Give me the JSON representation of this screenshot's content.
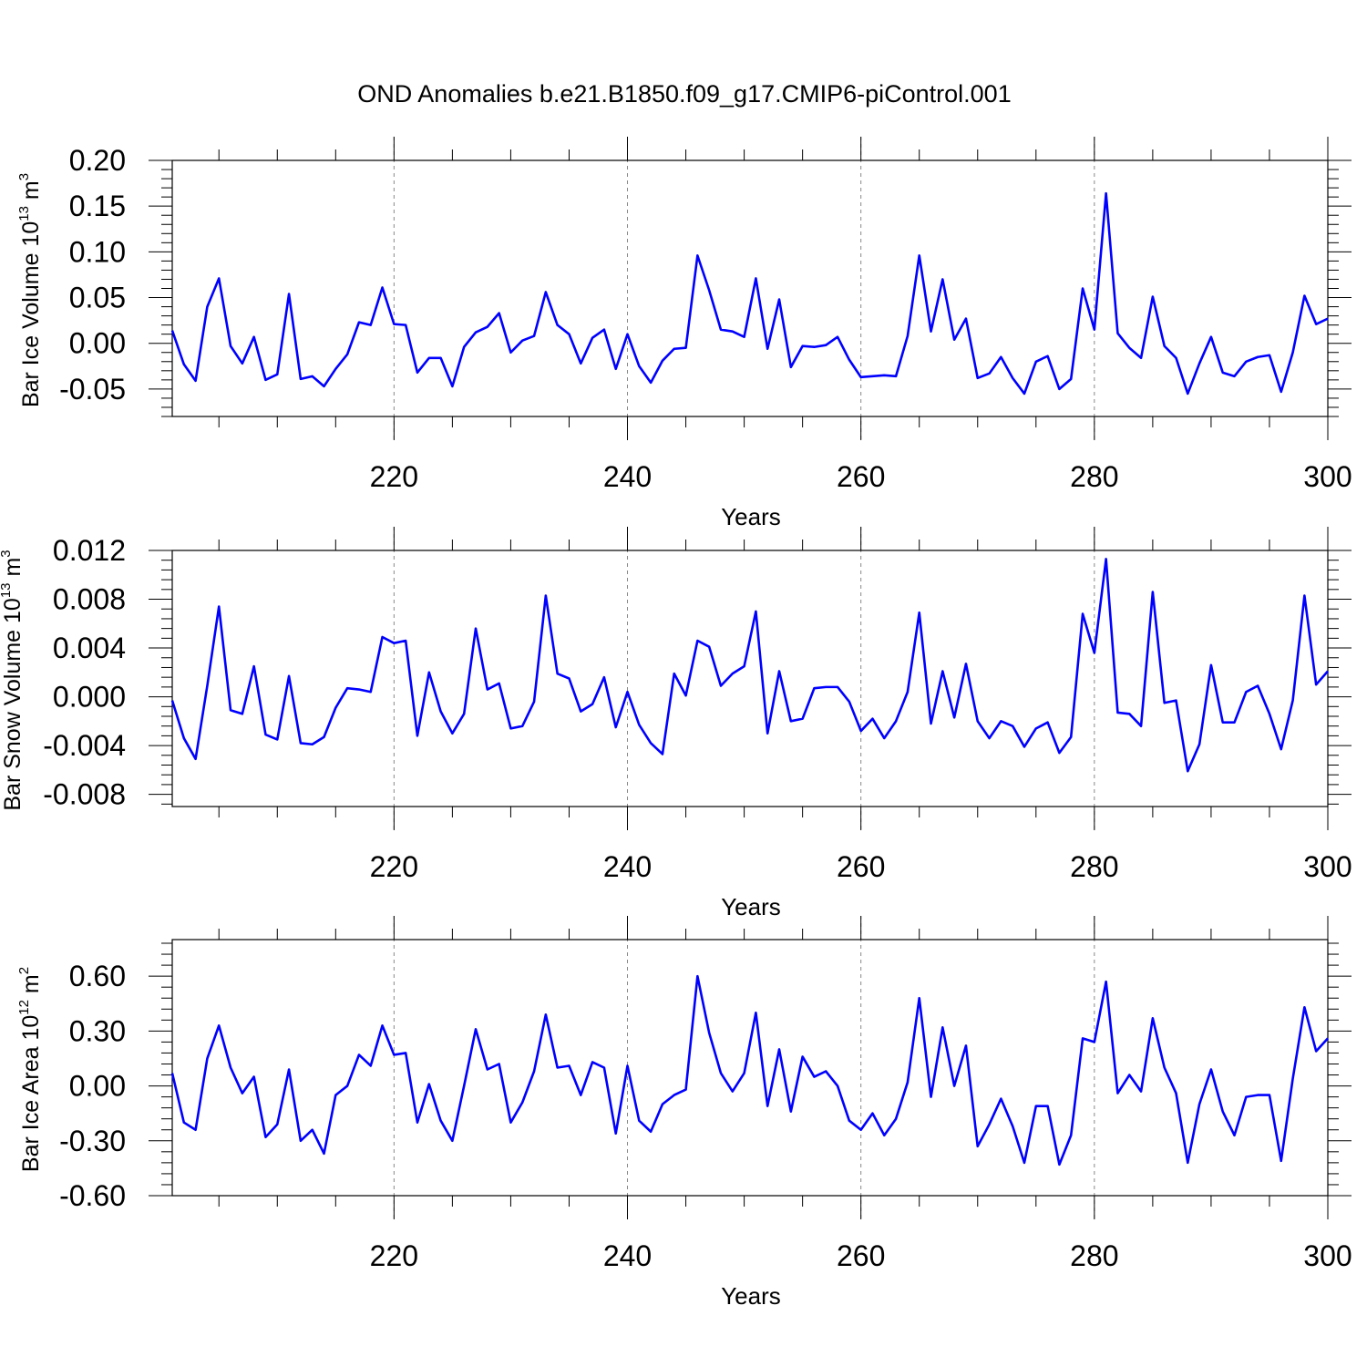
{
  "title": "OND Anomalies b.e21.B1850.f09_g17.CMIP6-piControl.001",
  "colors": {
    "series": "#0000ff",
    "axis": "#000000",
    "grid": "#888888"
  },
  "chart_data": [
    {
      "type": "line",
      "xlabel": "Years",
      "ylabel_main": "Bar Ice Volume 10",
      "ylabel_exp": "13",
      "ylabel_unit": " m",
      "ylabel_unit_exp": "3",
      "xlim": [
        201,
        300
      ],
      "ylim": [
        -0.08,
        0.2
      ],
      "yticks": [
        "0.20",
        "0.15",
        "0.10",
        "0.05",
        "0.00",
        "-0.05"
      ],
      "ytick_values": [
        0.2,
        0.15,
        0.1,
        0.05,
        0.0,
        -0.05
      ],
      "xticks": [
        "220",
        "240",
        "260",
        "280",
        "300"
      ],
      "xtick_values": [
        220,
        240,
        260,
        280,
        300
      ],
      "x_start": 201,
      "values": [
        0.014,
        -0.023,
        -0.041,
        0.04,
        0.071,
        -0.003,
        -0.022,
        0.007,
        -0.04,
        -0.034,
        0.054,
        -0.039,
        -0.036,
        -0.047,
        -0.028,
        -0.012,
        0.023,
        0.02,
        0.061,
        0.021,
        0.02,
        -0.032,
        -0.016,
        -0.016,
        -0.047,
        -0.004,
        0.012,
        0.018,
        0.033,
        -0.01,
        0.003,
        0.008,
        0.056,
        0.02,
        0.01,
        -0.022,
        0.006,
        0.015,
        -0.028,
        0.01,
        -0.025,
        -0.043,
        -0.019,
        -0.006,
        -0.005,
        0.096,
        0.058,
        0.015,
        0.013,
        0.007,
        0.071,
        -0.006,
        0.048,
        -0.026,
        -0.003,
        -0.004,
        -0.002,
        0.007,
        -0.018,
        -0.037,
        -0.036,
        -0.035,
        -0.036,
        0.008,
        0.096,
        0.013,
        0.07,
        0.004,
        0.027,
        -0.038,
        -0.033,
        -0.015,
        -0.038,
        -0.055,
        -0.02,
        -0.014,
        -0.05,
        -0.039,
        0.06,
        0.015,
        0.164,
        0.011,
        -0.005,
        -0.016,
        0.051,
        -0.003,
        -0.016,
        -0.055,
        -0.022,
        0.007,
        -0.032,
        -0.036,
        -0.02,
        -0.015,
        -0.013,
        -0.053,
        -0.01,
        0.052,
        0.021,
        0.027
      ]
    },
    {
      "type": "line",
      "xlabel": "Years",
      "ylabel_main": "Bar Snow Volume 10",
      "ylabel_exp": "13",
      "ylabel_unit": " m",
      "ylabel_unit_exp": "3",
      "xlim": [
        201,
        300
      ],
      "ylim": [
        -0.009,
        0.012
      ],
      "yticks": [
        "0.012",
        "0.008",
        "0.004",
        "0.000",
        "-0.004",
        "-0.008"
      ],
      "ytick_values": [
        0.012,
        0.008,
        0.004,
        0.0,
        -0.004,
        -0.008
      ],
      "xticks": [
        "220",
        "240",
        "260",
        "280",
        "300"
      ],
      "xtick_values": [
        220,
        240,
        260,
        280,
        300
      ],
      "x_start": 201,
      "values": [
        -0.0003,
        -0.0034,
        -0.0051,
        0.0009,
        0.0074,
        -0.0011,
        -0.0014,
        0.0025,
        -0.0031,
        -0.0035,
        0.0017,
        -0.0038,
        -0.0039,
        -0.0033,
        -0.0009,
        0.0007,
        0.0006,
        0.0004,
        0.0049,
        0.0044,
        0.0046,
        -0.0032,
        0.002,
        -0.0012,
        -0.003,
        -0.0014,
        0.0056,
        0.0006,
        0.0011,
        -0.0026,
        -0.0024,
        -0.0004,
        0.0083,
        0.0019,
        0.0015,
        -0.0012,
        -0.0006,
        0.0016,
        -0.0025,
        0.0004,
        -0.0023,
        -0.0038,
        -0.0047,
        0.0019,
        0.0001,
        0.0046,
        0.0041,
        0.0009,
        0.0019,
        0.0025,
        0.007,
        -0.003,
        0.0021,
        -0.002,
        -0.0018,
        0.0007,
        0.0008,
        0.0008,
        -0.0004,
        -0.0028,
        -0.0018,
        -0.0034,
        -0.002,
        0.0004,
        0.0069,
        -0.0022,
        0.0021,
        -0.0017,
        0.0027,
        -0.002,
        -0.0034,
        -0.002,
        -0.0024,
        -0.0041,
        -0.0026,
        -0.0021,
        -0.0046,
        -0.0033,
        0.0068,
        0.0036,
        0.0113,
        -0.0013,
        -0.0014,
        -0.0024,
        0.0086,
        -0.0005,
        -0.0003,
        -0.0061,
        -0.0039,
        0.0026,
        -0.0021,
        -0.0021,
        0.0004,
        0.0009,
        -0.0014,
        -0.0043,
        -0.0003,
        0.0083,
        0.001,
        0.0021
      ]
    },
    {
      "type": "line",
      "xlabel": "Years",
      "ylabel_main": "Bar Ice Area 10",
      "ylabel_exp": "12",
      "ylabel_unit": " m",
      "ylabel_unit_exp": "2",
      "xlim": [
        201,
        300
      ],
      "ylim": [
        -0.6,
        0.8
      ],
      "yticks": [
        "0.60",
        "0.30",
        "0.00",
        "-0.30",
        "-0.60"
      ],
      "ytick_values": [
        0.6,
        0.3,
        0.0,
        -0.3,
        -0.6
      ],
      "xticks": [
        "220",
        "240",
        "260",
        "280",
        "300"
      ],
      "xtick_values": [
        220,
        240,
        260,
        280,
        300
      ],
      "x_start": 201,
      "values": [
        0.07,
        -0.2,
        -0.24,
        0.15,
        0.33,
        0.1,
        -0.04,
        0.05,
        -0.28,
        -0.21,
        0.09,
        -0.3,
        -0.24,
        -0.37,
        -0.05,
        0.0,
        0.17,
        0.11,
        0.33,
        0.17,
        0.18,
        -0.2,
        0.01,
        -0.19,
        -0.3,
        0.0,
        0.31,
        0.09,
        0.12,
        -0.2,
        -0.09,
        0.08,
        0.39,
        0.1,
        0.11,
        -0.05,
        0.13,
        0.1,
        -0.26,
        0.11,
        -0.19,
        -0.25,
        -0.1,
        -0.05,
        -0.02,
        0.6,
        0.29,
        0.07,
        -0.03,
        0.07,
        0.4,
        -0.11,
        0.2,
        -0.14,
        0.16,
        0.05,
        0.08,
        0.0,
        -0.19,
        -0.24,
        -0.15,
        -0.27,
        -0.18,
        0.02,
        0.48,
        -0.06,
        0.32,
        0.0,
        0.22,
        -0.33,
        -0.21,
        -0.07,
        -0.22,
        -0.42,
        -0.11,
        -0.11,
        -0.43,
        -0.27,
        0.26,
        0.24,
        0.57,
        -0.04,
        0.06,
        -0.03,
        0.37,
        0.1,
        -0.04,
        -0.42,
        -0.1,
        0.09,
        -0.14,
        -0.27,
        -0.06,
        -0.05,
        -0.05,
        -0.41,
        0.04,
        0.43,
        0.19,
        0.26
      ]
    }
  ]
}
